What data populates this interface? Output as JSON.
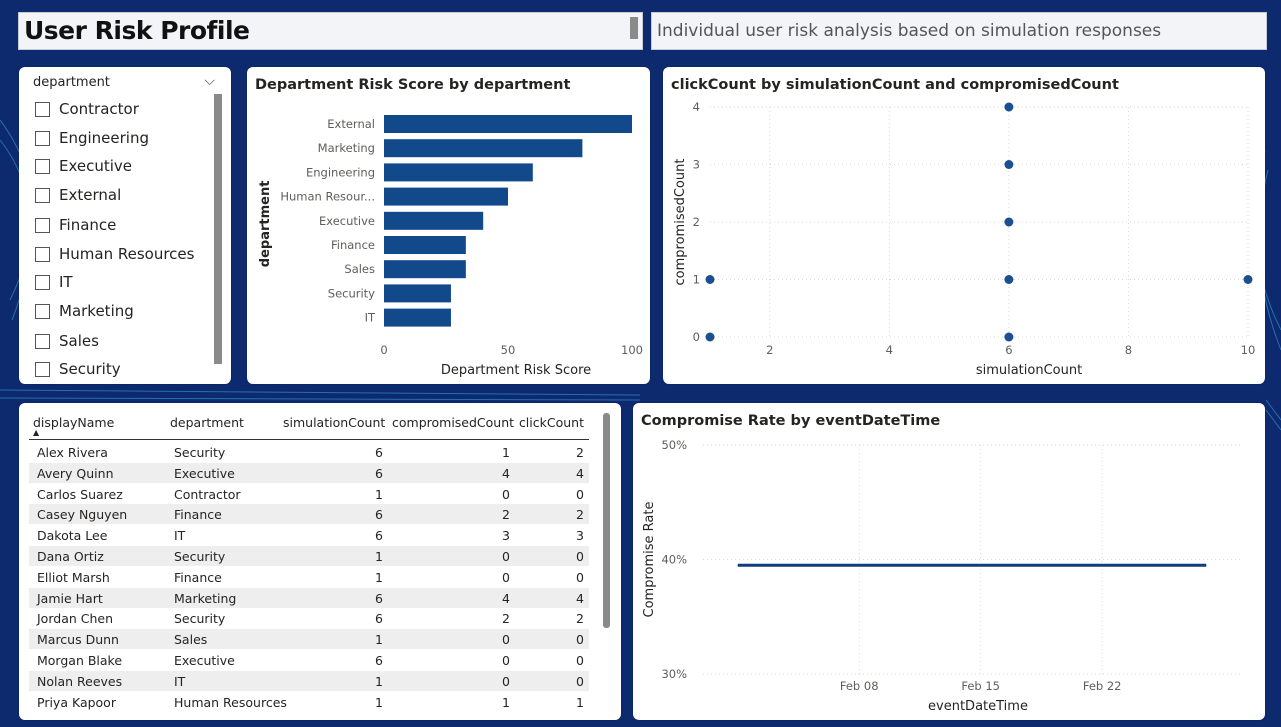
{
  "page": {
    "title": "User Risk Profile",
    "subtitle": "Individual user risk analysis based on simulation responses"
  },
  "slicer": {
    "header": "department",
    "chevron": "⌵",
    "items": [
      "Contractor",
      "Engineering",
      "Executive",
      "External",
      "Finance",
      "Human Resources",
      "IT",
      "Marketing",
      "Sales",
      "Security"
    ]
  },
  "bar_chart": {
    "title": "Department Risk Score by department"
  },
  "scatter_chart": {
    "title": "clickCount by simulationCount and compromisedCount"
  },
  "line_chart": {
    "title": "Compromise Rate by eventDateTime"
  },
  "table": {
    "columns": [
      "displayName",
      "department",
      "simulationCount",
      "compromisedCount",
      "clickCount"
    ],
    "sort_indicator": "▲",
    "rows": [
      {
        "name": "Alex Rivera",
        "dept": "Security",
        "sim": "6",
        "comp": "1",
        "click": "2"
      },
      {
        "name": "Avery Quinn",
        "dept": "Executive",
        "sim": "6",
        "comp": "4",
        "click": "4"
      },
      {
        "name": "Carlos Suarez",
        "dept": "Contractor",
        "sim": "1",
        "comp": "0",
        "click": "0"
      },
      {
        "name": "Casey Nguyen",
        "dept": "Finance",
        "sim": "6",
        "comp": "2",
        "click": "2"
      },
      {
        "name": "Dakota Lee",
        "dept": "IT",
        "sim": "6",
        "comp": "3",
        "click": "3"
      },
      {
        "name": "Dana Ortiz",
        "dept": "Security",
        "sim": "1",
        "comp": "0",
        "click": "0"
      },
      {
        "name": "Elliot Marsh",
        "dept": "Finance",
        "sim": "1",
        "comp": "0",
        "click": "0"
      },
      {
        "name": "Jamie Hart",
        "dept": "Marketing",
        "sim": "6",
        "comp": "4",
        "click": "4"
      },
      {
        "name": "Jordan Chen",
        "dept": "Security",
        "sim": "6",
        "comp": "2",
        "click": "2"
      },
      {
        "name": "Marcus Dunn",
        "dept": "Sales",
        "sim": "1",
        "comp": "0",
        "click": "0"
      },
      {
        "name": "Morgan Blake",
        "dept": "Executive",
        "sim": "6",
        "comp": "0",
        "click": "0"
      },
      {
        "name": "Nolan Reeves",
        "dept": "IT",
        "sim": "1",
        "comp": "0",
        "click": "0"
      },
      {
        "name": "Priya Kapoor",
        "dept": "Human Resources",
        "sim": "1",
        "comp": "1",
        "click": "1"
      }
    ]
  },
  "colors": {
    "bar": "#12498a",
    "line": "#0f3f7a",
    "background": "#0d2a6e"
  },
  "chart_data": [
    {
      "type": "bar",
      "orientation": "horizontal",
      "title": "Department Risk Score by department",
      "xlabel": "Department Risk Score",
      "ylabel": "department",
      "categories": [
        "External",
        "Marketing",
        "Engineering",
        "Human Resour...",
        "Executive",
        "Finance",
        "Sales",
        "Security",
        "IT"
      ],
      "values": [
        100,
        80,
        60,
        50,
        40,
        33,
        33,
        27,
        27
      ],
      "xlim": [
        0,
        100
      ],
      "xticks": [
        "0",
        "50",
        "100"
      ]
    },
    {
      "type": "scatter",
      "title": "clickCount by simulationCount and compromisedCount",
      "xlabel": "simulationCount",
      "ylabel": "compromisedCount",
      "xlim": [
        1,
        10
      ],
      "ylim": [
        0,
        4
      ],
      "xticks": [
        "2",
        "4",
        "6",
        "8",
        "10"
      ],
      "yticks": [
        "0",
        "1",
        "2",
        "3",
        "4"
      ],
      "points": [
        {
          "x": 1,
          "y": 0
        },
        {
          "x": 1,
          "y": 1
        },
        {
          "x": 6,
          "y": 0
        },
        {
          "x": 6,
          "y": 1
        },
        {
          "x": 6,
          "y": 2
        },
        {
          "x": 6,
          "y": 3
        },
        {
          "x": 6,
          "y": 4
        },
        {
          "x": 10,
          "y": 1
        }
      ],
      "grid": true
    },
    {
      "type": "line",
      "title": "Compromise Rate by eventDateTime",
      "xlabel": "eventDateTime",
      "ylabel": "Compromise Rate",
      "x": [
        "2024-02-01",
        "2024-02-28"
      ],
      "values": [
        0.395,
        0.395
      ],
      "ylim": [
        0.3,
        0.5
      ],
      "yticks": [
        "30%",
        "40%",
        "50%"
      ],
      "xticks": [
        "Feb 08",
        "Feb 15",
        "Feb 22"
      ],
      "grid": true
    }
  ]
}
